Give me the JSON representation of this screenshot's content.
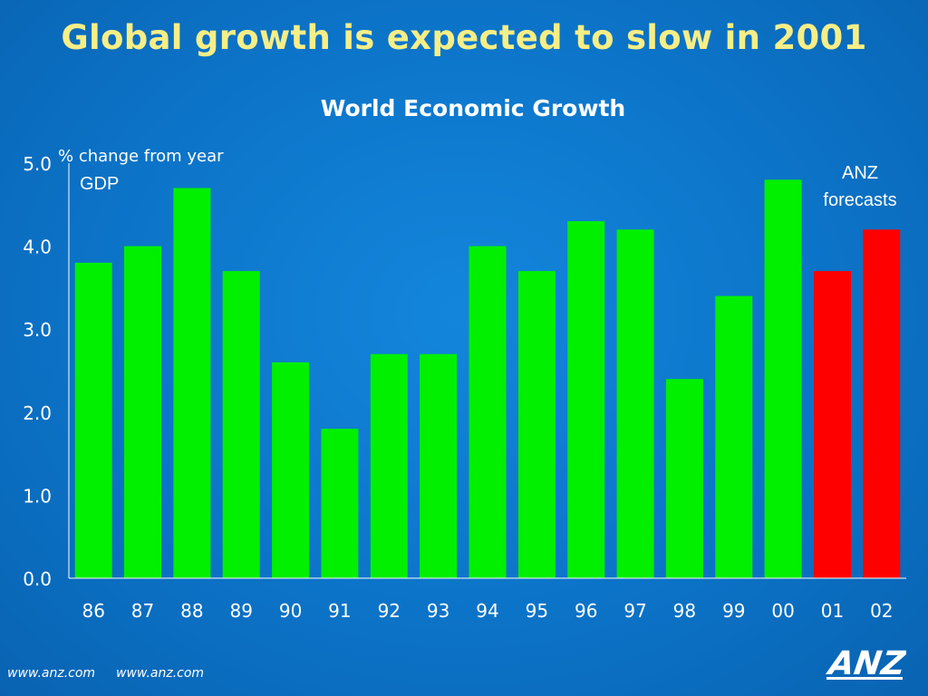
{
  "slide": {
    "title": "Global growth is expected to slow in 2001",
    "footer_left": "www.anz.com",
    "footer_right": "www.anz.com",
    "logo_text": "ANZ"
  },
  "colors": {
    "actual": "#00f000",
    "forecast": "#ff0000",
    "title": "#f6ee86",
    "axis": "#ffffff"
  },
  "chart_data": {
    "type": "bar",
    "title": "World Economic Growth",
    "ylabel": "% change from year",
    "series_label": "GDP",
    "annotation": [
      "ANZ",
      "forecasts"
    ],
    "categories": [
      "86",
      "87",
      "88",
      "89",
      "90",
      "91",
      "92",
      "93",
      "94",
      "95",
      "96",
      "97",
      "98",
      "99",
      "00",
      "01",
      "02"
    ],
    "values": [
      3.8,
      4.0,
      4.7,
      3.7,
      2.6,
      1.8,
      2.7,
      2.7,
      4.0,
      3.7,
      4.3,
      4.2,
      2.4,
      3.4,
      4.8,
      3.7,
      4.2
    ],
    "forecast_from_index": 15,
    "ylim": [
      0,
      5
    ],
    "yticks": [
      "0.0",
      "1.0",
      "2.0",
      "3.0",
      "4.0",
      "5.0"
    ],
    "grid": false
  }
}
